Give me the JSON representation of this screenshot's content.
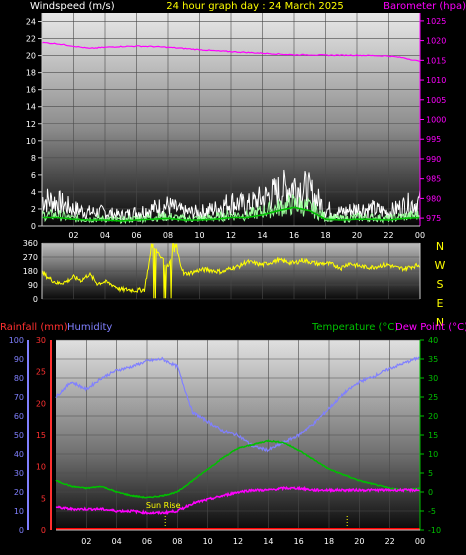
{
  "header": {
    "left_label": "Windspeed (m/s)",
    "title": "24 hour graph day : 24 March 2025",
    "right_label": "Barometer (hpa)"
  },
  "colors": {
    "windspeed": "#ffffff",
    "wind_avg": "#9cff9c",
    "wind_trend": "#00c000",
    "barometer": "#ff00ff",
    "direction": "#ffff00",
    "rain_axis": "#ff3030",
    "humidity": "#8080ff",
    "temperature": "#00c000",
    "dewpoint": "#ff00ff",
    "sun": "#ffff00"
  },
  "chart_data": [
    {
      "type": "line",
      "name": "wind-barometer",
      "x_ticks": [
        "02",
        "04",
        "06",
        "08",
        "10",
        "12",
        "14",
        "16",
        "18",
        "20",
        "22",
        "00"
      ],
      "y_left": {
        "label": "Windspeed (m/s)",
        "ticks": [
          0,
          2,
          4,
          6,
          8,
          10,
          12,
          14,
          16,
          18,
          20,
          22,
          24
        ],
        "range": [
          0,
          25
        ]
      },
      "y_right": {
        "label": "Barometer (hpa)",
        "ticks": [
          975,
          980,
          985,
          990,
          995,
          1000,
          1005,
          1010,
          1015,
          1020,
          1025
        ],
        "range": [
          973,
          1027
        ]
      },
      "x": [
        0,
        1,
        2,
        3,
        4,
        5,
        6,
        7,
        8,
        9,
        10,
        11,
        12,
        13,
        14,
        15,
        16,
        17,
        18,
        19,
        20,
        21,
        22,
        23,
        24
      ],
      "series": [
        {
          "key": "gust",
          "values": [
            4.0,
            3.5,
            2.5,
            2.0,
            2.0,
            1.5,
            2.0,
            2.5,
            3.0,
            2.0,
            2.0,
            2.5,
            3.5,
            3.0,
            4.0,
            5.0,
            6.0,
            5.0,
            2.5,
            2.0,
            2.5,
            2.5,
            2.0,
            3.0,
            3.5
          ]
        },
        {
          "key": "avg",
          "values": [
            1.5,
            1.5,
            1.0,
            1.0,
            1.0,
            0.8,
            1.0,
            1.2,
            1.3,
            1.0,
            1.0,
            1.2,
            1.5,
            1.5,
            2.0,
            2.5,
            3.0,
            2.5,
            1.2,
            1.0,
            1.2,
            1.2,
            1.0,
            1.3,
            1.5
          ]
        },
        {
          "key": "trend",
          "values": [
            1.0,
            1.0,
            0.8,
            0.7,
            0.7,
            0.6,
            0.7,
            0.8,
            0.9,
            0.7,
            0.7,
            0.8,
            1.0,
            1.0,
            1.3,
            1.8,
            2.2,
            1.8,
            0.8,
            0.7,
            0.8,
            0.8,
            0.7,
            0.9,
            1.0
          ]
        },
        {
          "key": "barometer",
          "values": [
            1019.5,
            1019.2,
            1018.6,
            1018.0,
            1018.3,
            1018.5,
            1018.6,
            1018.5,
            1018.3,
            1018.0,
            1017.7,
            1017.4,
            1017.2,
            1017.0,
            1016.8,
            1016.6,
            1016.4,
            1016.4,
            1016.3,
            1016.3,
            1016.3,
            1016.2,
            1016.1,
            1015.6,
            1014.7
          ]
        }
      ]
    },
    {
      "type": "line",
      "name": "wind-direction",
      "x_ticks": [
        "02",
        "04",
        "06",
        "08",
        "10",
        "12",
        "14",
        "16",
        "18",
        "20",
        "22",
        "00"
      ],
      "y_left": {
        "ticks": [
          0,
          90,
          180,
          270,
          360
        ],
        "range": [
          0,
          360
        ]
      },
      "y_right": {
        "ticks": [
          "N",
          "W",
          "S",
          "E",
          "N"
        ]
      },
      "x": [
        0,
        0.5,
        1,
        1.5,
        2,
        2.5,
        3,
        3.5,
        4,
        4.5,
        5,
        5.5,
        6,
        6.5,
        7,
        7.5,
        8,
        8.5,
        9,
        9.5,
        10,
        10.5,
        11,
        11.5,
        12,
        12.5,
        13,
        13.5,
        14,
        14.5,
        15,
        15.5,
        16,
        16.5,
        17,
        17.5,
        18,
        18.5,
        19,
        19.5,
        20,
        20.5,
        21,
        21.5,
        22,
        22.5,
        23,
        23.5,
        24
      ],
      "values": [
        170,
        130,
        100,
        110,
        140,
        120,
        160,
        100,
        110,
        90,
        60,
        60,
        55,
        60,
        350,
        280,
        200,
        330,
        160,
        170,
        185,
        190,
        180,
        175,
        200,
        210,
        240,
        230,
        220,
        235,
        250,
        240,
        230,
        250,
        240,
        225,
        230,
        220,
        200,
        230,
        215,
        205,
        205,
        215,
        220,
        200,
        195,
        210,
        220
      ]
    },
    {
      "type": "line",
      "name": "temp-humidity-rain",
      "x_ticks": [
        "02",
        "04",
        "06",
        "08",
        "10",
        "12",
        "14",
        "16",
        "18",
        "20",
        "22",
        "00"
      ],
      "y_left_humidity": {
        "label": "Humidity",
        "ticks": [
          0,
          10,
          20,
          30,
          40,
          50,
          60,
          70,
          80,
          90,
          100
        ],
        "range": [
          0,
          100
        ]
      },
      "y_left_rain": {
        "label": "Rainfall (mm)",
        "ticks": [
          0,
          5,
          10,
          15,
          20,
          25,
          30
        ],
        "range": [
          0,
          30
        ]
      },
      "y_right": {
        "label": "Temperature (°C)",
        "ticks": [
          -10,
          -5,
          0,
          5,
          10,
          15,
          20,
          25,
          30,
          35,
          40
        ],
        "range": [
          -10,
          40
        ]
      },
      "annotations": [
        {
          "label": "Sun Rise",
          "x": 7.2
        }
      ],
      "x": [
        0,
        1,
        2,
        3,
        4,
        5,
        6,
        7,
        8,
        9,
        10,
        11,
        12,
        13,
        14,
        15,
        16,
        17,
        18,
        19,
        20,
        21,
        22,
        23,
        24
      ],
      "series": [
        {
          "key": "humidity",
          "name": "Humidity",
          "values": [
            70,
            78,
            74,
            80,
            84,
            86,
            89,
            90,
            86,
            62,
            57,
            52,
            50,
            44,
            42,
            46,
            50,
            56,
            64,
            72,
            78,
            81,
            85,
            88,
            91
          ]
        },
        {
          "key": "temperature",
          "name": "Temperature (°C)",
          "values": [
            3.0,
            1.5,
            1.0,
            1.5,
            0.0,
            -1.0,
            -1.5,
            -1.0,
            0.0,
            3.0,
            6.0,
            9.0,
            11.5,
            12.5,
            13.5,
            13.0,
            11.0,
            8.5,
            6.0,
            4.5,
            3.0,
            2.0,
            1.0,
            0.5,
            1.0
          ]
        },
        {
          "key": "dewpoint",
          "name": "Dew Point (°C)",
          "values": [
            -4.0,
            -4.5,
            -4.5,
            -4.5,
            -5.0,
            -5.0,
            -5.5,
            -5.5,
            -5.0,
            -3.0,
            -2.0,
            -1.0,
            0.0,
            0.5,
            0.5,
            1.0,
            1.0,
            0.5,
            0.5,
            0.5,
            0.5,
            0.5,
            0.5,
            0.5,
            0.5
          ]
        },
        {
          "key": "rainfall",
          "name": "Rainfall (mm)",
          "values": [
            0,
            0,
            0,
            0,
            0,
            0,
            0,
            0,
            0,
            0,
            0,
            0,
            0,
            0,
            0,
            0,
            0,
            0,
            0,
            0,
            0,
            0,
            0,
            0,
            0
          ]
        }
      ]
    }
  ],
  "labels": {
    "rainfall": "Rainfall (mm)",
    "humidity": "Humidity",
    "temperature": "Temperature (°C)",
    "dewpoint": "Dew Point (°C)",
    "sunrise": "Sun Rise"
  }
}
